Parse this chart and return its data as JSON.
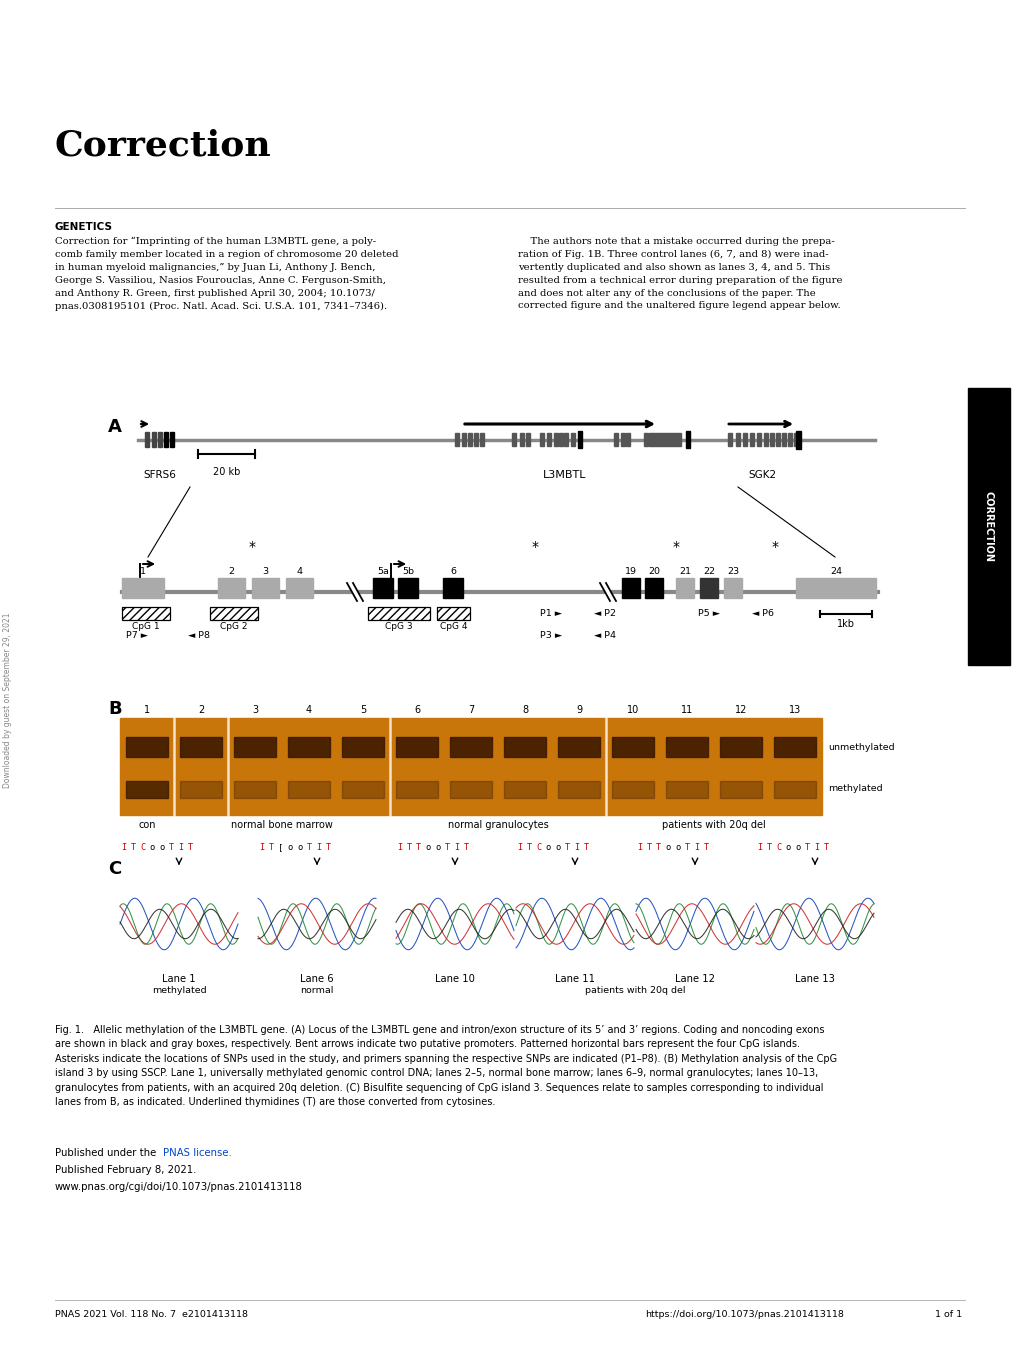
{
  "title": "Correction",
  "genetics_label": "GENETICS",
  "left_text": "Correction for “Imprinting of the human L3MBTL gene, a poly-\ncomb family member located in a region of chromosome 20 deleted\nin human myeloid malignancies,” by Juan Li, Anthony J. Bench,\nGeorge S. Vassiliou, Nasios Fourouclas, Anne C. Ferguson-Smith,\nand Anthony R. Green, first published April 30, 2004; 10.1073/\npnas.0308195101 (Proc. Natl. Acad. Sci. U.S.A. 101, 7341–7346).",
  "right_text": "    The authors note that a mistake occurred during the prepa-\nration of Fig. 1B. Three control lanes (6, 7, and 8) were inad-\nvertently duplicated and also shown as lanes 3, 4, and 5. This\nresulted from a technical error during preparation of the figure\nand does not alter any of the conclusions of the paper. The\ncorrected figure and the unaltered figure legend appear below.",
  "fig_legend_line1": "Fig. 1.   Allelic methylation of the L3MBTL gene. (A) Locus of the L3MBTL gene and intron/exon structure of its 5’ and 3’ regions. Coding and noncoding exons",
  "fig_legend_line2": "are shown in black and gray boxes, respectively. Bent arrows indicate two putative promoters. Patterned horizontal bars represent the four CpG islands.",
  "fig_legend_line3": "Asterisks indicate the locations of SNPs used in the study, and primers spanning the respective SNPs are indicated (P1–P8). (B) Methylation analysis of the CpG",
  "fig_legend_line4": "island 3 by using SSCP. Lane 1, universally methylated genomic control DNA; lanes 2–5, normal bone marrow; lanes 6–9, normal granulocytes; lanes 10–13,",
  "fig_legend_line5": "granulocytes from patients, with an acquired 20q deletion. (C) Bisulfite sequencing of CpG island 3. Sequences relate to samples corresponding to individual",
  "fig_legend_line6": "lanes from B, as indicated. Underlined thymidines (T) are those converted from cytosines.",
  "published_under": "Published under the ",
  "pnas_license": "PNAS license",
  "published_date": "Published February 8, 2021.",
  "doi_text": "www.pnas.org/cgi/doi/10.1073/pnas.2101413118",
  "footer_left": "PNAS 2021 Vol. 118 No. 7  e2101413118",
  "footer_right": "https://doi.org/10.1073/pnas.2101413118",
  "footer_page": "1 of 1",
  "bg_color": "#ffffff",
  "text_color": "#000000",
  "sidebar_color": "#000000",
  "sidebar_text": "CORRECTION",
  "gel_bg_color": "#c8760a",
  "gel_band_color": "#3a1800",
  "link_color": "#0044cc"
}
